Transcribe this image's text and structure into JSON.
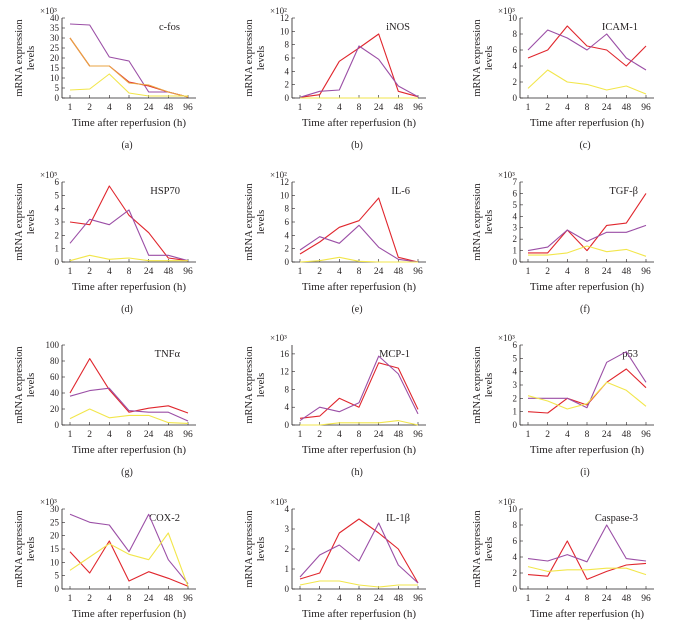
{
  "figure": {
    "x_tick_labels": [
      "1",
      "2",
      "4",
      "8",
      "24",
      "48",
      "96"
    ],
    "series_colors": {
      "red": "#e0262d",
      "purple": "#9b4fa6",
      "orange": "#e8a341",
      "yellow": "#f2e64b"
    }
  },
  "chart_data": [
    {
      "type": "line",
      "panel_label": "(a)",
      "title": "c-fos",
      "xlabel": "Time after reperfusion (h)",
      "ylabel": "mRNA expression levels",
      "scale_label": "×10³",
      "categories": [
        "1",
        "2",
        "4",
        "8",
        "24",
        "48",
        "96"
      ],
      "ylim": [
        0,
        40
      ],
      "yticks": [
        0,
        5,
        10,
        15,
        20,
        25,
        30,
        35,
        40
      ],
      "series": [
        {
          "name": "purple",
          "color": "#9b4fa6",
          "values": [
            37,
            36.5,
            20.5,
            18.5,
            3,
            3,
            0.5
          ]
        },
        {
          "name": "red",
          "color": "#e0262d",
          "values": [
            30,
            16,
            16,
            8,
            6,
            3,
            0.5
          ]
        },
        {
          "name": "orange",
          "color": "#e8a341",
          "values": [
            30,
            16,
            16,
            7.5,
            6.5,
            3,
            0.5
          ]
        },
        {
          "name": "yellow",
          "color": "#f2e64b",
          "values": [
            4,
            4.5,
            12,
            2.5,
            1,
            1,
            1
          ]
        }
      ]
    },
    {
      "type": "line",
      "panel_label": "(b)",
      "title": "iNOS",
      "xlabel": "Time after reperfusion (h)",
      "ylabel": "mRNA expression levels",
      "scale_label": "×10²",
      "categories": [
        "1",
        "2",
        "4",
        "8",
        "24",
        "48",
        "96"
      ],
      "ylim": [
        0,
        12
      ],
      "yticks": [
        0,
        2,
        4,
        6,
        8,
        10,
        12
      ],
      "series": [
        {
          "name": "red",
          "color": "#e0262d",
          "values": [
            0.1,
            0.5,
            5.5,
            7.5,
            9.6,
            1,
            0.2
          ]
        },
        {
          "name": "purple",
          "color": "#9b4fa6",
          "values": [
            0.1,
            1,
            1.2,
            7.8,
            5.8,
            1.8,
            0.2
          ]
        },
        {
          "name": "yellow",
          "color": "#f2e64b",
          "values": [
            0,
            0,
            0,
            0,
            0,
            0,
            0
          ]
        }
      ]
    },
    {
      "type": "line",
      "panel_label": "(c)",
      "title": "ICAM-1",
      "xlabel": "Time after reperfusion (h)",
      "ylabel": "mRNA expression levels",
      "scale_label": "×10³",
      "categories": [
        "1",
        "2",
        "4",
        "8",
        "24",
        "48",
        "96"
      ],
      "ylim": [
        0,
        10
      ],
      "yticks": [
        0,
        2,
        4,
        6,
        8,
        10
      ],
      "series": [
        {
          "name": "red",
          "color": "#e0262d",
          "values": [
            5,
            6,
            9,
            6.5,
            6,
            4,
            6.5
          ]
        },
        {
          "name": "purple",
          "color": "#9b4fa6",
          "values": [
            6,
            8.5,
            7.5,
            6,
            8,
            5,
            3.5
          ]
        },
        {
          "name": "yellow",
          "color": "#f2e64b",
          "values": [
            1.2,
            3.5,
            2,
            1.7,
            1,
            1.5,
            0.5
          ]
        }
      ]
    },
    {
      "type": "line",
      "panel_label": "(d)",
      "title": "HSP70",
      "xlabel": "Time after reperfusion (h)",
      "ylabel": "mRNA expression levels",
      "scale_label": "×10⁵",
      "categories": [
        "1",
        "2",
        "4",
        "8",
        "24",
        "48",
        "96"
      ],
      "ylim": [
        0,
        6
      ],
      "yticks": [
        0,
        1,
        2,
        3,
        4,
        5,
        6
      ],
      "series": [
        {
          "name": "red",
          "color": "#e0262d",
          "values": [
            3,
            2.8,
            5.7,
            3.5,
            2.2,
            0.3,
            0.1
          ]
        },
        {
          "name": "purple",
          "color": "#9b4fa6",
          "values": [
            1.4,
            3.2,
            2.8,
            3.9,
            0.5,
            0.5,
            0.1
          ]
        },
        {
          "name": "yellow",
          "color": "#f2e64b",
          "values": [
            0.1,
            0.5,
            0.2,
            0.3,
            0.1,
            0.1,
            0.1
          ]
        }
      ]
    },
    {
      "type": "line",
      "panel_label": "(e)",
      "title": "IL-6",
      "xlabel": "Time after reperfusion (h)",
      "ylabel": "mRNA expression levels",
      "scale_label": "×10²",
      "categories": [
        "1",
        "2",
        "4",
        "8",
        "24",
        "48",
        "96"
      ],
      "ylim": [
        0,
        12
      ],
      "yticks": [
        0,
        2,
        4,
        6,
        8,
        10,
        12
      ],
      "series": [
        {
          "name": "red",
          "color": "#e0262d",
          "values": [
            1.2,
            3,
            5.2,
            6.2,
            9.6,
            0.7,
            0
          ]
        },
        {
          "name": "purple",
          "color": "#9b4fa6",
          "values": [
            1.8,
            3.8,
            2.8,
            5.5,
            2.2,
            0.4,
            0
          ]
        },
        {
          "name": "yellow",
          "color": "#f2e64b",
          "values": [
            0,
            0.2,
            0.7,
            0.1,
            0,
            0,
            0
          ]
        }
      ]
    },
    {
      "type": "line",
      "panel_label": "(f)",
      "title": "TGF-β",
      "xlabel": "Time after reperfusion (h)",
      "ylabel": "mRNA expression levels",
      "scale_label": "×10³",
      "categories": [
        "1",
        "2",
        "4",
        "8",
        "24",
        "48",
        "96"
      ],
      "ylim": [
        0,
        7
      ],
      "yticks": [
        0,
        1,
        2,
        3,
        4,
        5,
        6,
        7
      ],
      "series": [
        {
          "name": "red",
          "color": "#e0262d",
          "values": [
            0.8,
            0.8,
            2.8,
            1,
            3.2,
            3.4,
            6
          ]
        },
        {
          "name": "purple",
          "color": "#9b4fa6",
          "values": [
            1,
            1.3,
            2.8,
            1.8,
            2.6,
            2.6,
            3.2
          ]
        },
        {
          "name": "yellow",
          "color": "#f2e64b",
          "values": [
            0.6,
            0.6,
            0.8,
            1.4,
            0.9,
            1.1,
            0.5
          ]
        }
      ]
    },
    {
      "type": "line",
      "panel_label": "(g)",
      "title": "TNFα",
      "xlabel": "Time after reperfusion (h)",
      "ylabel": "mRNA expression levels",
      "scale_label": "",
      "categories": [
        "1",
        "2",
        "4",
        "8",
        "24",
        "48",
        "96"
      ],
      "ylim": [
        0,
        100
      ],
      "yticks": [
        0,
        20,
        40,
        60,
        80,
        100
      ],
      "series": [
        {
          "name": "red",
          "color": "#e0262d",
          "values": [
            40,
            83,
            44,
            16,
            21,
            24,
            15
          ]
        },
        {
          "name": "purple",
          "color": "#9b4fa6",
          "values": [
            36,
            43,
            46,
            18,
            16,
            16,
            5
          ]
        },
        {
          "name": "yellow",
          "color": "#f2e64b",
          "values": [
            8,
            20,
            9,
            12,
            12,
            3,
            2
          ]
        }
      ]
    },
    {
      "type": "line",
      "panel_label": "(h)",
      "title": "MCP-1",
      "xlabel": "Time after reperfusion (h)",
      "ylabel": "mRNA expression levels",
      "scale_label": "×10³",
      "categories": [
        "1",
        "2",
        "4",
        "8",
        "24",
        "48",
        "96"
      ],
      "ylim": [
        0,
        18
      ],
      "yticks": [
        0,
        4,
        8,
        12,
        16
      ],
      "series": [
        {
          "name": "red",
          "color": "#e0262d",
          "values": [
            1.5,
            2,
            6,
            4,
            14,
            12.8,
            3.5
          ]
        },
        {
          "name": "purple",
          "color": "#9b4fa6",
          "values": [
            1,
            4,
            3,
            5,
            15.5,
            11.5,
            2.5
          ]
        },
        {
          "name": "yellow",
          "color": "#f2e64b",
          "values": [
            0,
            0,
            0.5,
            0.5,
            0.5,
            1,
            0
          ]
        }
      ]
    },
    {
      "type": "line",
      "panel_label": "(i)",
      "title": "p53",
      "xlabel": "Time after reperfusion (h)",
      "ylabel": "mRNA expression levels",
      "scale_label": "×10³",
      "categories": [
        "1",
        "2",
        "4",
        "8",
        "24",
        "48",
        "96"
      ],
      "ylim": [
        0,
        6
      ],
      "yticks": [
        0,
        1,
        2,
        3,
        4,
        5,
        6
      ],
      "series": [
        {
          "name": "red",
          "color": "#e0262d",
          "values": [
            1,
            0.9,
            2,
            1.5,
            3.2,
            4.2,
            2.8
          ]
        },
        {
          "name": "purple",
          "color": "#9b4fa6",
          "values": [
            2,
            2,
            2,
            1.3,
            4.7,
            5.5,
            3.2
          ]
        },
        {
          "name": "yellow",
          "color": "#f2e64b",
          "values": [
            2.2,
            1.8,
            1.2,
            1.6,
            3.2,
            2.6,
            1.4
          ]
        }
      ]
    },
    {
      "type": "line",
      "panel_label": "(j)",
      "title": "COX-2",
      "xlabel": "Time after reperfusion (h)",
      "ylabel": "mRNA expression levels",
      "scale_label": "×10³",
      "categories": [
        "1",
        "2",
        "4",
        "8",
        "24",
        "48",
        "96"
      ],
      "ylim": [
        0,
        30
      ],
      "yticks": [
        0,
        5,
        10,
        15,
        20,
        25,
        30
      ],
      "series": [
        {
          "name": "purple",
          "color": "#9b4fa6",
          "values": [
            28,
            25,
            24,
            14,
            28,
            11,
            2
          ]
        },
        {
          "name": "red",
          "color": "#e0262d",
          "values": [
            14,
            6,
            18,
            3,
            6.5,
            4,
            1
          ]
        },
        {
          "name": "yellow",
          "color": "#f2e64b",
          "values": [
            7,
            12,
            17,
            13,
            11,
            21,
            1
          ]
        }
      ]
    },
    {
      "type": "line",
      "panel_label": "(k)",
      "title": "IL-1β",
      "xlabel": "Time after reperfusion (h)",
      "ylabel": "mRNA expression levels",
      "scale_label": "×10³",
      "categories": [
        "1",
        "2",
        "4",
        "8",
        "24",
        "48",
        "96"
      ],
      "ylim": [
        0,
        4
      ],
      "yticks": [
        0,
        1,
        2,
        3,
        4
      ],
      "series": [
        {
          "name": "red",
          "color": "#e0262d",
          "values": [
            0.5,
            0.8,
            2.8,
            3.5,
            2.8,
            2,
            0.3
          ]
        },
        {
          "name": "purple",
          "color": "#9b4fa6",
          "values": [
            0.6,
            1.7,
            2.2,
            1.4,
            3.3,
            1.2,
            0.3
          ]
        },
        {
          "name": "yellow",
          "color": "#f2e64b",
          "values": [
            0.2,
            0.4,
            0.4,
            0.2,
            0.1,
            0.2,
            0.2
          ]
        }
      ]
    },
    {
      "type": "line",
      "panel_label": "(l)",
      "title": "Caspase-3",
      "xlabel": "Time after reperfusion (h)",
      "ylabel": "mRNA expression levels",
      "scale_label": "×10²",
      "categories": [
        "1",
        "2",
        "4",
        "8",
        "24",
        "48",
        "96"
      ],
      "ylim": [
        0,
        10
      ],
      "yticks": [
        0,
        2,
        4,
        6,
        8,
        10
      ],
      "series": [
        {
          "name": "red",
          "color": "#e0262d",
          "values": [
            1.8,
            1.6,
            6,
            1.2,
            2.2,
            3,
            3.2
          ]
        },
        {
          "name": "purple",
          "color": "#9b4fa6",
          "values": [
            3.8,
            3.5,
            4.3,
            3.4,
            8,
            3.8,
            3.5
          ]
        },
        {
          "name": "yellow",
          "color": "#f2e64b",
          "values": [
            2.8,
            2.2,
            2.4,
            2.4,
            2.6,
            2.6,
            1.8
          ]
        }
      ]
    }
  ]
}
